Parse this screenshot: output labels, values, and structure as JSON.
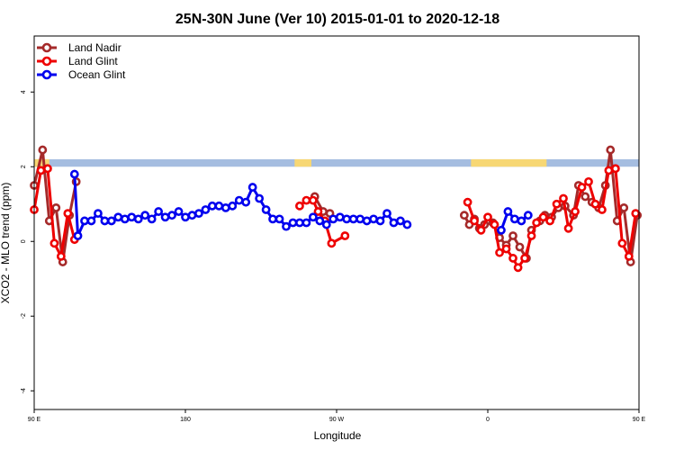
{
  "chart_data": {
    "type": "line",
    "title": "25N-30N June (Ver 10)   2015-01-01 to 2020-12-18",
    "xlabel": "Longitude",
    "ylabel": "XCO2 - MLO trend (ppm)",
    "xlim": [
      90,
      450
    ],
    "ylim": [
      -4.5,
      5.5
    ],
    "x_ticks": [
      {
        "value": 90,
        "label": "90 E"
      },
      {
        "value": 180,
        "label": "180"
      },
      {
        "value": 270,
        "label": "90 W"
      },
      {
        "value": 360,
        "label": "0"
      },
      {
        "value": 450,
        "label": "90 E"
      },
      {
        "value": 540,
        "label": "180"
      }
    ],
    "y_ticks": [
      {
        "value": -4,
        "label": "-4"
      },
      {
        "value": -2,
        "label": "-2"
      },
      {
        "value": 0,
        "label": "0"
      },
      {
        "value": 2,
        "label": "2"
      },
      {
        "value": 4,
        "label": "4"
      }
    ],
    "grid": false,
    "legend": "top-left",
    "land_band": {
      "y_range": [
        2.0,
        2.2
      ],
      "ocean_color": "#a5bde0",
      "land_color": "#f7d774",
      "land_spans": [
        [
          90,
          99
        ],
        [
          245,
          255
        ],
        [
          350,
          395
        ],
        [
          475,
          495
        ]
      ]
    },
    "series": [
      {
        "name": "Land Nadir",
        "color": "#a52a2a",
        "points": [
          [
            90,
            1.5
          ],
          [
            95,
            2.45
          ],
          [
            99,
            0.55
          ],
          [
            103,
            0.9
          ],
          [
            107,
            -0.55
          ],
          [
            111,
            0.7
          ],
          [
            115,
            1.6
          ],
          [
            257,
            1.2
          ],
          [
            262,
            0.8
          ],
          [
            266,
            0.75
          ],
          [
            346,
            0.7
          ],
          [
            349,
            0.45
          ],
          [
            352,
            0.6
          ],
          [
            355,
            0.35
          ],
          [
            358,
            0.45
          ],
          [
            363,
            0.5
          ],
          [
            367,
            0.1
          ],
          [
            371,
            -0.1
          ],
          [
            375,
            0.15
          ],
          [
            379,
            -0.15
          ],
          [
            383,
            -0.45
          ],
          [
            386,
            0.3
          ],
          [
            391,
            0.55
          ],
          [
            394,
            0.7
          ],
          [
            398,
            0.65
          ],
          [
            402,
            0.9
          ],
          [
            406,
            0.95
          ],
          [
            411,
            0.7
          ],
          [
            414,
            1.5
          ],
          [
            418,
            1.2
          ],
          [
            422,
            1.05
          ],
          [
            426,
            0.9
          ],
          [
            430,
            1.5
          ],
          [
            433,
            2.45
          ],
          [
            437,
            0.55
          ],
          [
            441,
            0.9
          ],
          [
            445,
            -0.55
          ],
          [
            449,
            0.7
          ]
        ]
      },
      {
        "name": "Land Glint",
        "color": "#ee0000",
        "points": [
          [
            90,
            0.85
          ],
          [
            94,
            1.9
          ],
          [
            98,
            1.95
          ],
          [
            102,
            -0.05
          ],
          [
            106,
            -0.4
          ],
          [
            110,
            0.75
          ],
          [
            114,
            0.05
          ],
          [
            248,
            0.95
          ],
          [
            252,
            1.1
          ],
          [
            256,
            1.1
          ],
          [
            259,
            0.8
          ],
          [
            263,
            0.55
          ],
          [
            267,
            -0.05
          ],
          [
            271,
            null
          ],
          [
            275,
            0.15
          ],
          [
            348,
            1.05
          ],
          [
            352,
            0.55
          ],
          [
            356,
            0.3
          ],
          [
            360,
            0.65
          ],
          [
            364,
            0.45
          ],
          [
            367,
            -0.3
          ],
          [
            371,
            -0.2
          ],
          [
            375,
            -0.45
          ],
          [
            378,
            -0.7
          ],
          [
            382,
            -0.45
          ],
          [
            386,
            0.15
          ],
          [
            389,
            0.5
          ],
          [
            393,
            0.65
          ],
          [
            397,
            0.55
          ],
          [
            401,
            1.0
          ],
          [
            405,
            1.15
          ],
          [
            408,
            0.35
          ],
          [
            412,
            0.8
          ],
          [
            416,
            1.45
          ],
          [
            420,
            1.6
          ],
          [
            424,
            1.0
          ],
          [
            428,
            0.85
          ],
          [
            432,
            1.9
          ],
          [
            436,
            1.95
          ],
          [
            440,
            -0.05
          ],
          [
            444,
            -0.4
          ],
          [
            448,
            0.75
          ],
          [
            452,
            0.05
          ]
        ]
      },
      {
        "name": "Ocean Glint",
        "color": "#0000ee",
        "points": [
          [
            114,
            1.8
          ],
          [
            116,
            0.15
          ],
          [
            120,
            0.55
          ],
          [
            124,
            0.55
          ],
          [
            128,
            0.75
          ],
          [
            132,
            0.55
          ],
          [
            136,
            0.55
          ],
          [
            140,
            0.65
          ],
          [
            144,
            0.6
          ],
          [
            148,
            0.65
          ],
          [
            152,
            0.6
          ],
          [
            156,
            0.7
          ],
          [
            160,
            0.6
          ],
          [
            164,
            0.8
          ],
          [
            168,
            0.65
          ],
          [
            172,
            0.7
          ],
          [
            176,
            0.8
          ],
          [
            180,
            0.65
          ],
          [
            184,
            0.7
          ],
          [
            188,
            0.75
          ],
          [
            192,
            0.85
          ],
          [
            196,
            0.95
          ],
          [
            200,
            0.95
          ],
          [
            204,
            0.9
          ],
          [
            208,
            0.95
          ],
          [
            212,
            1.1
          ],
          [
            216,
            1.05
          ],
          [
            220,
            1.45
          ],
          [
            224,
            1.15
          ],
          [
            228,
            0.85
          ],
          [
            232,
            0.6
          ],
          [
            236,
            0.6
          ],
          [
            240,
            0.4
          ],
          [
            244,
            0.5
          ],
          [
            248,
            0.5
          ],
          [
            252,
            0.5
          ],
          [
            256,
            0.65
          ],
          [
            260,
            0.55
          ],
          [
            264,
            0.45
          ],
          [
            268,
            0.6
          ],
          [
            272,
            0.65
          ],
          [
            276,
            0.6
          ],
          [
            280,
            0.6
          ],
          [
            284,
            0.6
          ],
          [
            288,
            0.55
          ],
          [
            292,
            0.6
          ],
          [
            296,
            0.55
          ],
          [
            300,
            0.75
          ],
          [
            304,
            0.5
          ],
          [
            308,
            0.55
          ],
          [
            312,
            0.45
          ],
          [
            368,
            0.3
          ],
          [
            372,
            0.8
          ],
          [
            376,
            0.6
          ],
          [
            380,
            0.55
          ],
          [
            384,
            0.7
          ],
          [
            452,
            1.8
          ],
          [
            454,
            0.15
          ],
          [
            458,
            0.55
          ],
          [
            462,
            0.55
          ],
          [
            466,
            0.75
          ],
          [
            470,
            0.55
          ],
          [
            474,
            0.55
          ],
          [
            478,
            0.65
          ],
          [
            482,
            0.6
          ],
          [
            486,
            0.65
          ],
          [
            490,
            0.6
          ],
          [
            494,
            0.7
          ],
          [
            498,
            0.65
          ]
        ]
      }
    ]
  }
}
